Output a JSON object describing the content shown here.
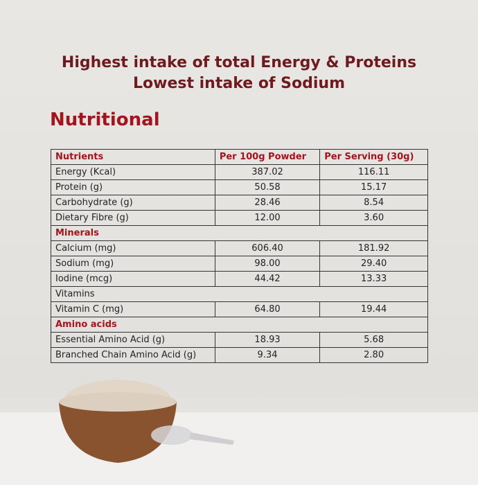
{
  "header": {
    "title": [
      "Highest intake of total Energy & Proteins",
      "Lowest intake of Sodium"
    ],
    "subtitle": "Nutritional"
  },
  "table": {
    "columns": [
      "Nutrients",
      "Per 100g Powder",
      "Per Serving (30g)"
    ],
    "rows": [
      {
        "cells": [
          "Energy (Kcal)",
          "387.02",
          "116.11"
        ]
      },
      {
        "cells": [
          "Protein (g)",
          "50.58",
          "15.17"
        ]
      },
      {
        "cells": [
          "Carbohydrate (g)",
          "28.46",
          "8.54"
        ]
      },
      {
        "cells": [
          "Dietary Fibre (g)",
          "12.00",
          "3.60"
        ]
      },
      {
        "section": "Minerals",
        "color": "#a3141c"
      },
      {
        "cells": [
          "Calcium (mg)",
          "606.40",
          "181.92"
        ]
      },
      {
        "cells": [
          "Sodium (mg)",
          "98.00",
          "29.40"
        ]
      },
      {
        "cells": [
          "Iodine (mcg)",
          "44.42",
          "13.33"
        ]
      },
      {
        "section": "Vitamins"
      },
      {
        "cells": [
          "Vitamin C (mg)",
          "64.80",
          "19.44"
        ]
      },
      {
        "section": "Amino acids",
        "color": "#a3141c"
      },
      {
        "cells": [
          "Essential Amino Acid (g)",
          "18.93",
          "5.68"
        ]
      },
      {
        "cells": [
          "Branched Chain Amino Acid (g)",
          "9.34",
          "2.80"
        ]
      }
    ]
  }
}
